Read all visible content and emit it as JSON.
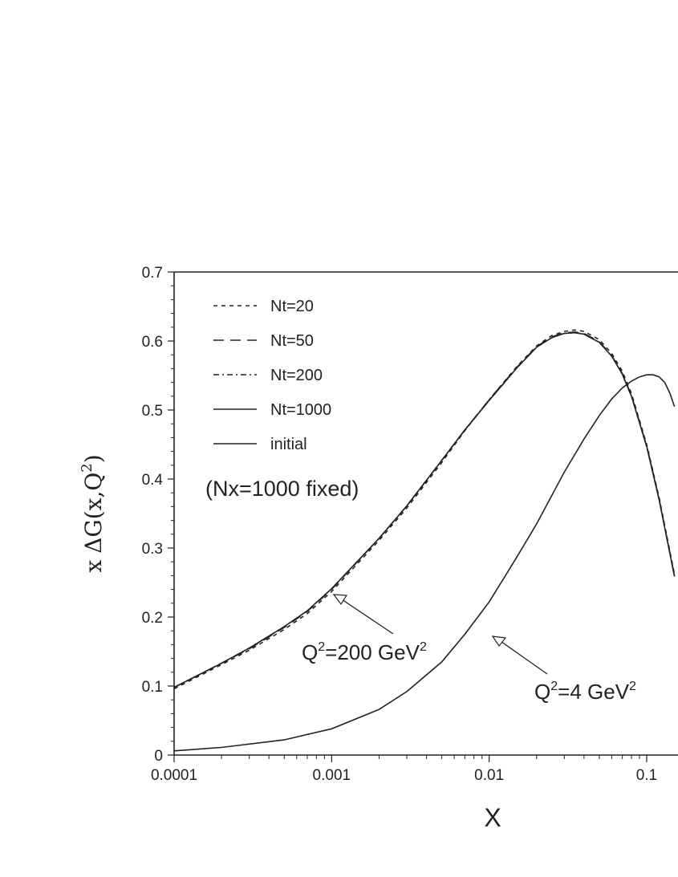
{
  "chart_data": {
    "type": "line",
    "title": "",
    "xlabel": "X",
    "ylabel": {
      "prefix": "x",
      "delta": "Δ",
      "main": "G(x,Q",
      "sup": "2",
      "close": ")"
    },
    "xscale": "log",
    "xlim": [
      0.0001,
      0.15
    ],
    "ylim": [
      0,
      0.7
    ],
    "x_ticks": [
      {
        "v": 0.0001,
        "label": "0.0001"
      },
      {
        "v": 0.001,
        "label": "0.001"
      },
      {
        "v": 0.01,
        "label": "0.01"
      },
      {
        "v": 0.1,
        "label": "0.1"
      }
    ],
    "y_ticks": [
      {
        "v": 0,
        "label": "0"
      },
      {
        "v": 0.1,
        "label": "0.1"
      },
      {
        "v": 0.2,
        "label": "0.2"
      },
      {
        "v": 0.3,
        "label": "0.3"
      },
      {
        "v": 0.4,
        "label": "0.4"
      },
      {
        "v": 0.5,
        "label": "0.5"
      },
      {
        "v": 0.6,
        "label": "0.6"
      },
      {
        "v": 0.7,
        "label": "0.7"
      }
    ],
    "legend_position": "top-left",
    "note": "(Nx=1000 fixed)",
    "series": [
      {
        "name": "Nt=20",
        "dash": "5,5",
        "x": [
          0.0001,
          0.0002,
          0.0003,
          0.0005,
          0.0007,
          0.001,
          0.002,
          0.003,
          0.005,
          0.007,
          0.01,
          0.015,
          0.02,
          0.025,
          0.03,
          0.035,
          0.04,
          0.05,
          0.06,
          0.07,
          0.08,
          0.1,
          0.12,
          0.15
        ],
        "y": [
          0.096,
          0.131,
          0.152,
          0.182,
          0.205,
          0.237,
          0.311,
          0.358,
          0.424,
          0.47,
          0.515,
          0.563,
          0.593,
          0.608,
          0.614,
          0.616,
          0.614,
          0.602,
          0.582,
          0.556,
          0.524,
          0.45,
          0.373,
          0.262
        ]
      },
      {
        "name": "Nt=50",
        "dash": "13,8",
        "x": [
          0.0001,
          0.0002,
          0.0003,
          0.0005,
          0.0007,
          0.001,
          0.002,
          0.003,
          0.005,
          0.007,
          0.01,
          0.015,
          0.02,
          0.025,
          0.03,
          0.035,
          0.04,
          0.05,
          0.06,
          0.07,
          0.08,
          0.1,
          0.12,
          0.15
        ],
        "y": [
          0.098,
          0.133,
          0.154,
          0.185,
          0.208,
          0.24,
          0.314,
          0.361,
          0.427,
          0.471,
          0.515,
          0.562,
          0.592,
          0.606,
          0.612,
          0.613,
          0.611,
          0.599,
          0.579,
          0.553,
          0.521,
          0.448,
          0.371,
          0.26
        ]
      },
      {
        "name": "Nt=200",
        "dash": "7,4,2,4",
        "x": [
          0.0001,
          0.0002,
          0.0003,
          0.0005,
          0.0007,
          0.001,
          0.002,
          0.003,
          0.005,
          0.007,
          0.01,
          0.015,
          0.02,
          0.025,
          0.03,
          0.035,
          0.04,
          0.05,
          0.06,
          0.07,
          0.08,
          0.1,
          0.12,
          0.15
        ],
        "y": [
          0.098,
          0.133,
          0.155,
          0.186,
          0.209,
          0.241,
          0.314,
          0.361,
          0.427,
          0.471,
          0.514,
          0.561,
          0.591,
          0.605,
          0.611,
          0.612,
          0.61,
          0.598,
          0.578,
          0.552,
          0.52,
          0.447,
          0.37,
          0.259
        ]
      },
      {
        "name": "Nt=1000",
        "dash": "",
        "x": [
          0.0001,
          0.0002,
          0.0003,
          0.0005,
          0.0007,
          0.001,
          0.002,
          0.003,
          0.005,
          0.007,
          0.01,
          0.015,
          0.02,
          0.025,
          0.03,
          0.035,
          0.04,
          0.05,
          0.06,
          0.07,
          0.08,
          0.1,
          0.12,
          0.15
        ],
        "y": [
          0.098,
          0.133,
          0.155,
          0.186,
          0.209,
          0.241,
          0.314,
          0.361,
          0.427,
          0.471,
          0.514,
          0.561,
          0.591,
          0.605,
          0.611,
          0.612,
          0.61,
          0.598,
          0.578,
          0.552,
          0.52,
          0.447,
          0.37,
          0.259
        ]
      },
      {
        "name": "initial",
        "dash": "",
        "x": [
          0.0001,
          0.0002,
          0.0005,
          0.001,
          0.002,
          0.003,
          0.005,
          0.007,
          0.01,
          0.015,
          0.02,
          0.03,
          0.04,
          0.05,
          0.06,
          0.07,
          0.08,
          0.09,
          0.1,
          0.11,
          0.12,
          0.13,
          0.14,
          0.15
        ],
        "y": [
          0.006,
          0.011,
          0.022,
          0.038,
          0.066,
          0.092,
          0.135,
          0.175,
          0.222,
          0.287,
          0.335,
          0.41,
          0.458,
          0.492,
          0.516,
          0.532,
          0.542,
          0.548,
          0.551,
          0.551,
          0.548,
          0.54,
          0.525,
          0.505
        ]
      }
    ],
    "annotations": [
      {
        "text": "Q",
        "sup": "2",
        "rest": "=200 GeV",
        "sup2": "2",
        "target_x": 0.001,
        "target_y": 0.235
      },
      {
        "text": "Q",
        "sup": "2",
        "rest": "=4 GeV",
        "sup2": "2",
        "target_x": 0.01,
        "target_y": 0.17
      }
    ]
  }
}
